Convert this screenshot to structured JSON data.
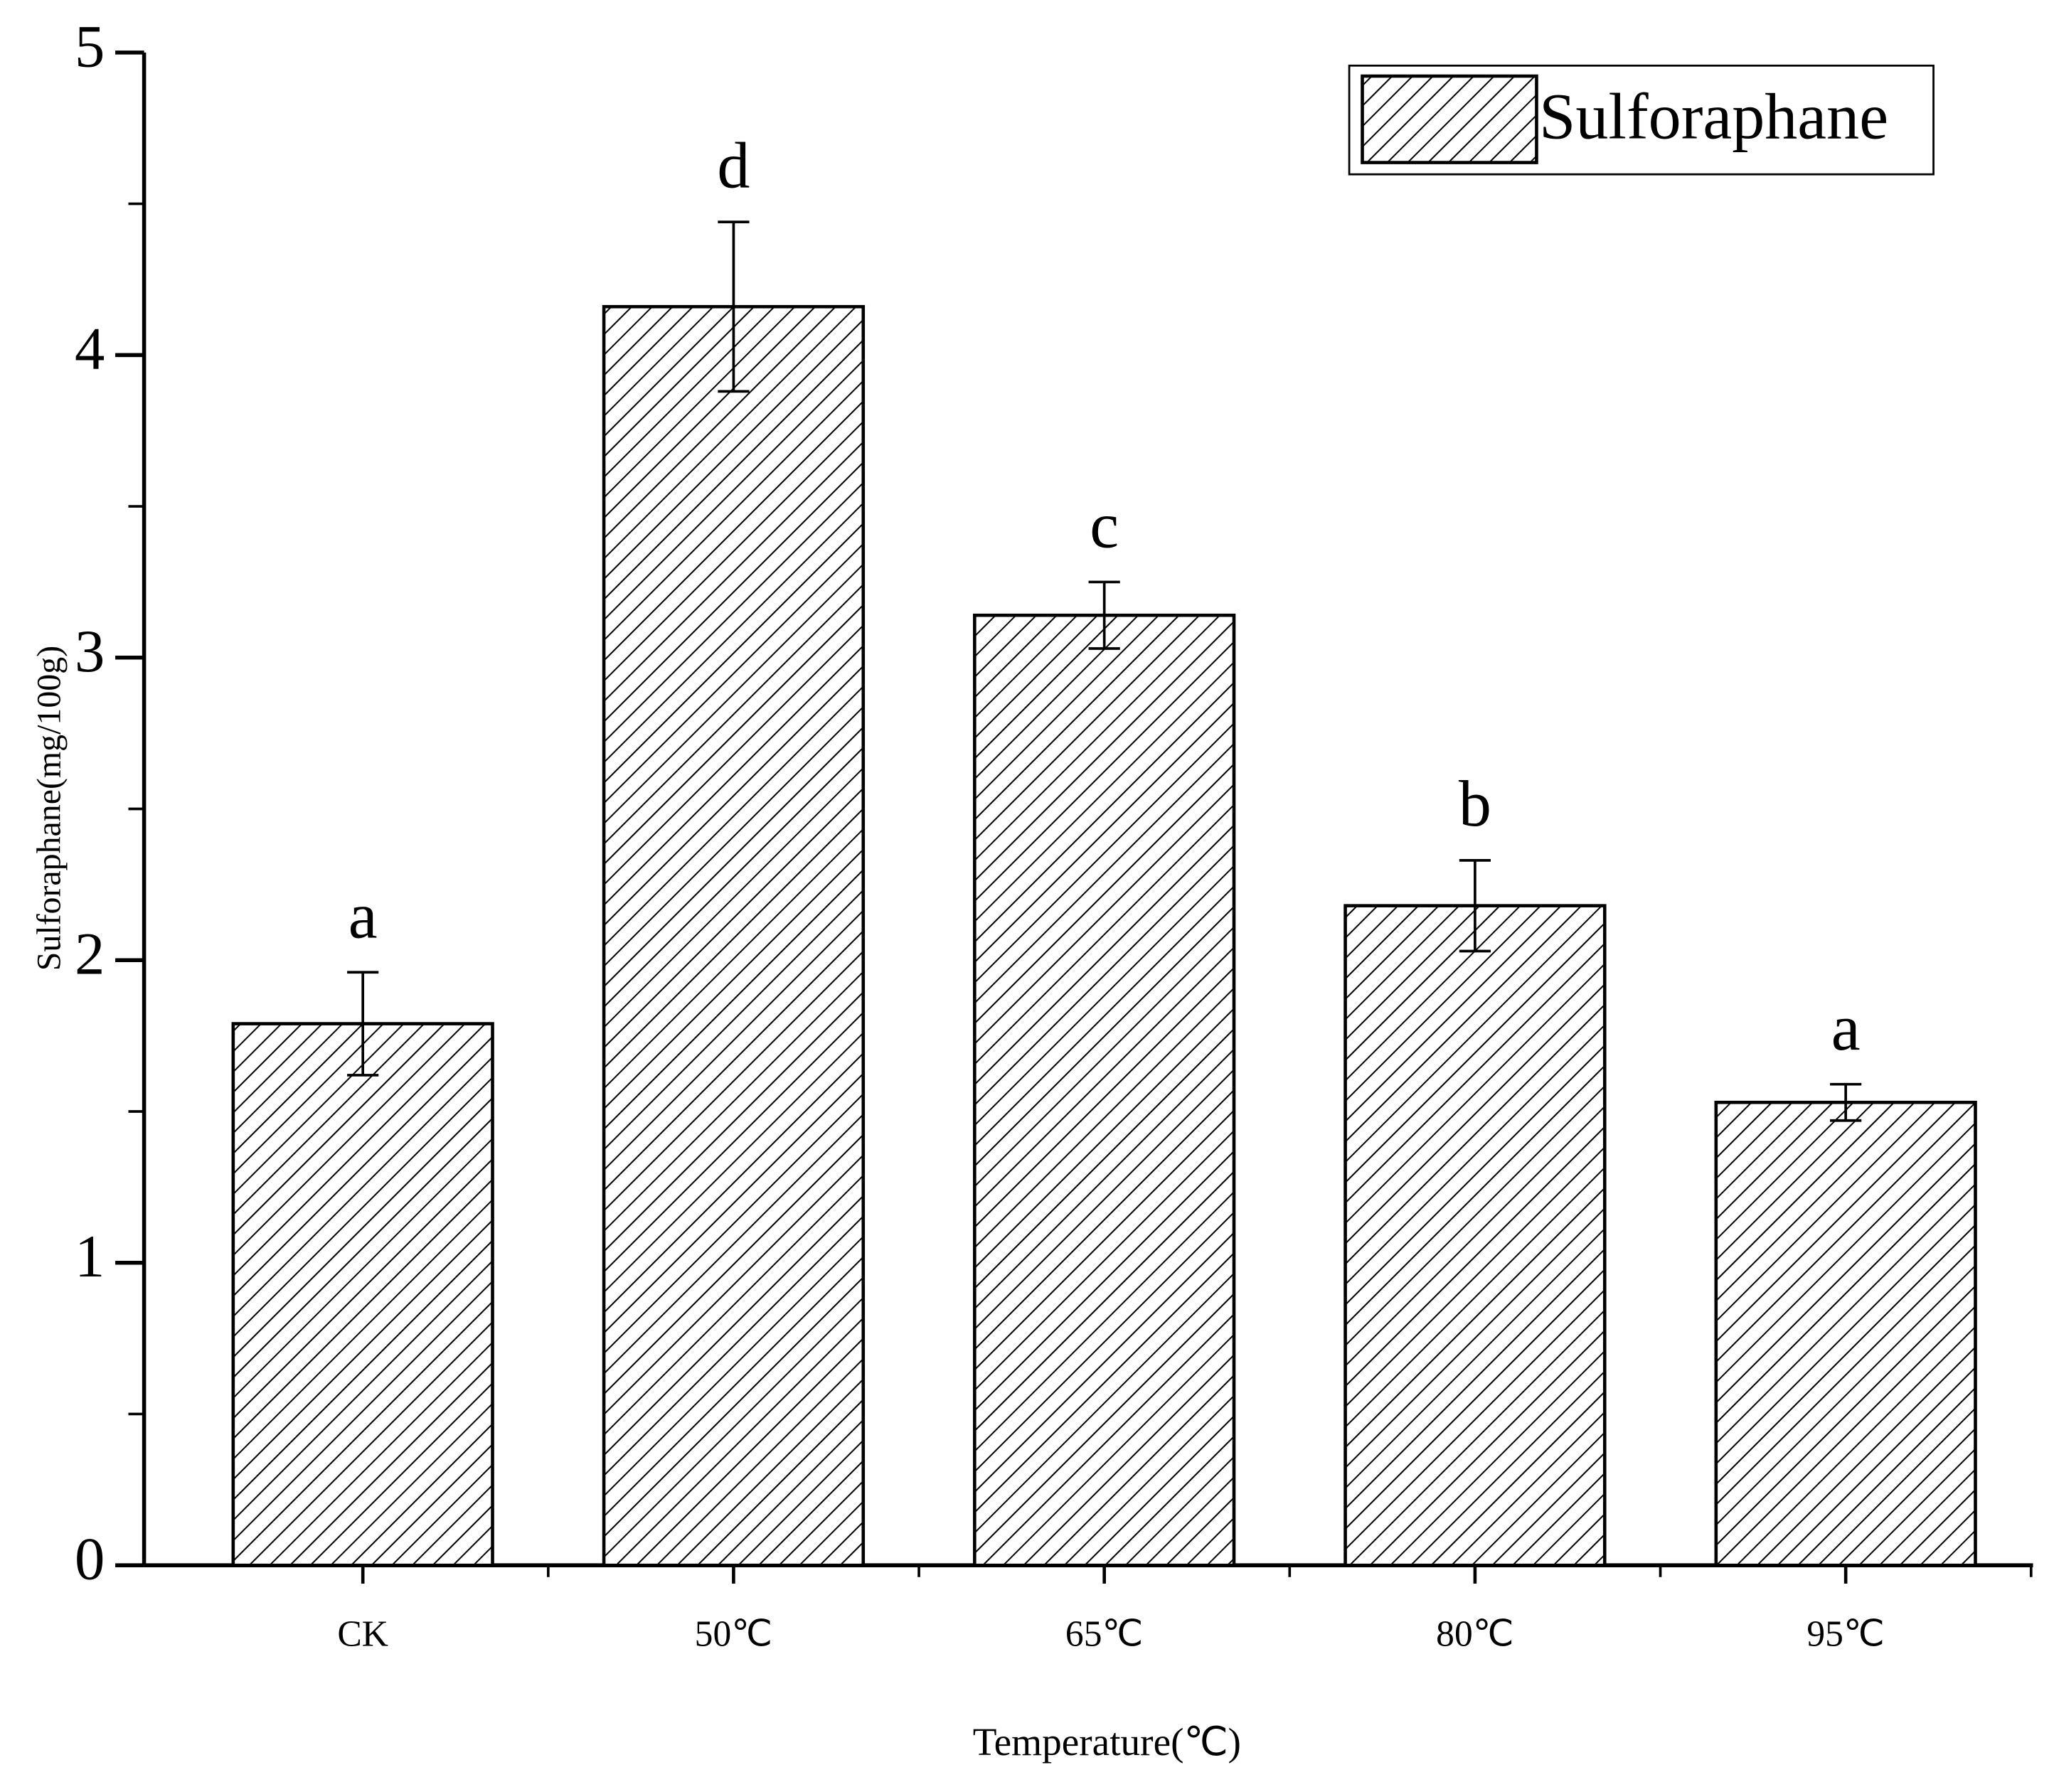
{
  "chart_data": {
    "type": "bar",
    "x_label": "Temperature(℃)",
    "y_label": "Sulforaphane(mg/100g)",
    "categories": [
      "CK",
      "50℃",
      "65℃",
      "80℃",
      "95℃"
    ],
    "series": [
      {
        "name": "Sulforaphane",
        "color": "#000000",
        "values": [
          1.79,
          4.16,
          3.14,
          2.18,
          1.53
        ],
        "errors": [
          0.17,
          0.28,
          0.11,
          0.15,
          0.06
        ]
      }
    ],
    "annotations": [
      "a",
      "d",
      "c",
      "b",
      "a"
    ],
    "ylim": [
      0,
      5
    ],
    "yticks": [
      0,
      1,
      2,
      3,
      4,
      5
    ],
    "legend": "top-right"
  }
}
